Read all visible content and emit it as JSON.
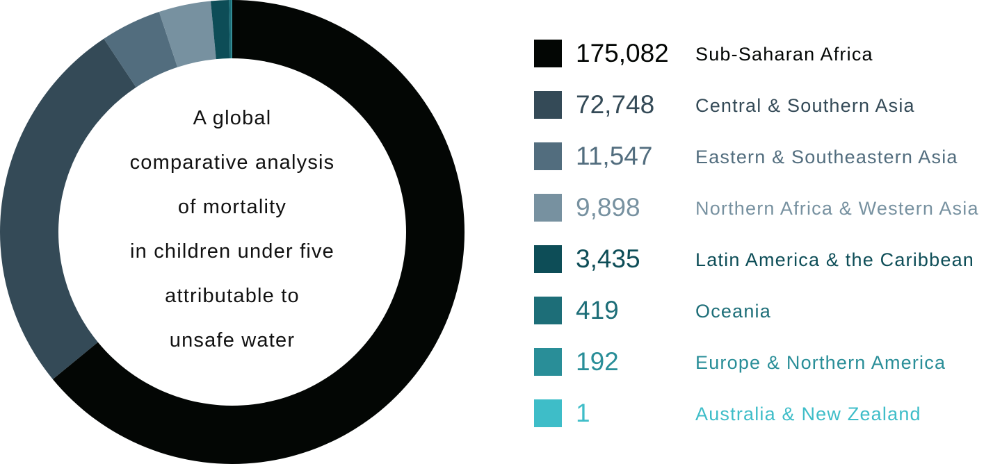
{
  "chart_data": {
    "type": "pie",
    "donut": true,
    "title_lines": [
      "A global",
      "comparative analysis",
      "of mortality",
      "in children under five",
      "attributable to",
      "unsafe water"
    ],
    "legend_placement": "right",
    "series": [
      {
        "label": "Sub-Saharan Africa",
        "value": 175082,
        "value_text": "175,082",
        "color": "#030604"
      },
      {
        "label": "Central & Southern Asia",
        "value": 72748,
        "value_text": "72,748",
        "color": "#344a57"
      },
      {
        "label": "Eastern & Southeastern Asia",
        "value": 11547,
        "value_text": "11,547",
        "color": "#526d7e"
      },
      {
        "label": "Northern Africa & Western Asia",
        "value": 9898,
        "value_text": "9,898",
        "color": "#7791a0"
      },
      {
        "label": "Latin America & the Caribbean",
        "value": 3435,
        "value_text": "3,435",
        "color": "#0d4d57"
      },
      {
        "label": "Oceania",
        "value": 419,
        "value_text": "419",
        "color": "#1d6e78"
      },
      {
        "label": "Europe & Northern America",
        "value": 192,
        "value_text": "192",
        "color": "#298e98"
      },
      {
        "label": "Australia & New Zealand",
        "value": 1,
        "value_text": "1",
        "color": "#3ebdc8"
      }
    ]
  }
}
